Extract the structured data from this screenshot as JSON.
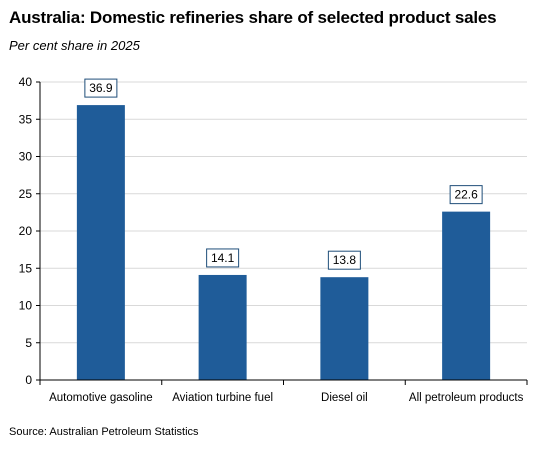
{
  "header": {
    "title": "Australia: Domestic refineries share of selected product sales",
    "subtitle": "Per cent share in 2025"
  },
  "footer": {
    "source": "Source: Australian Petroleum Statistics"
  },
  "chart_data": {
    "type": "bar",
    "title": "Australia: Domestic refineries share of selected product sales",
    "subtitle": "Per cent share in 2025",
    "xlabel": "",
    "ylabel": "",
    "categories": [
      "Automotive gasoline",
      "Aviation turbine fuel",
      "Diesel oil",
      "All petroleum products"
    ],
    "values": [
      36.9,
      14.1,
      13.8,
      22.6
    ],
    "data_labels": [
      "36.9",
      "14.1",
      "13.8",
      "22.6"
    ],
    "ylim": [
      0,
      40
    ],
    "yticks": [
      0,
      5,
      10,
      15,
      20,
      25,
      30,
      35,
      40
    ],
    "grid": true,
    "legend": "none",
    "colors": {
      "bar": "#1f5c99",
      "grid": "#d9d9d9",
      "axis": "#000000"
    }
  }
}
